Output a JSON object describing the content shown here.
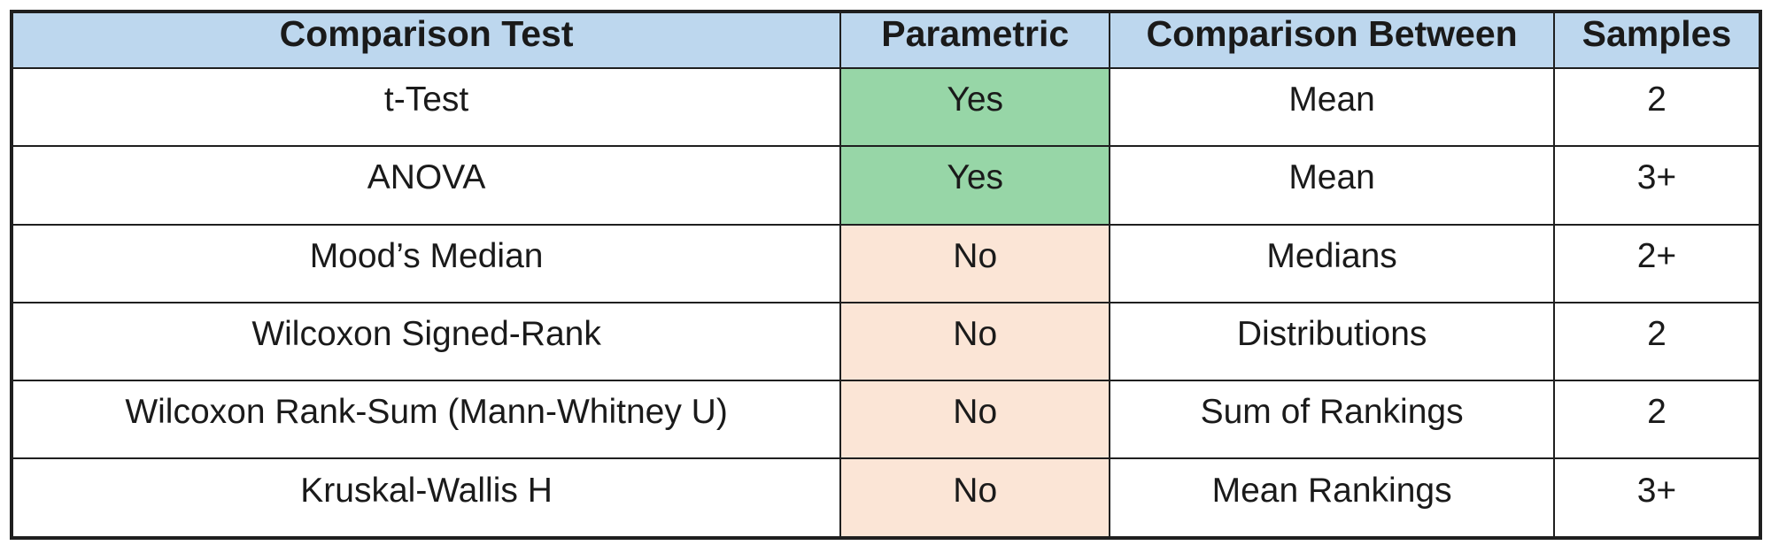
{
  "table": {
    "headers": [
      {
        "label": "Comparison Test"
      },
      {
        "label": "Parametric"
      },
      {
        "label": "Comparison Between"
      },
      {
        "label": "Samples"
      }
    ],
    "rows": [
      {
        "test": "t-Test",
        "parametric": "Yes",
        "comparison": "Mean",
        "samples": "2"
      },
      {
        "test": "ANOVA",
        "parametric": "Yes",
        "comparison": "Mean",
        "samples": "3+"
      },
      {
        "test": "Mood’s Median",
        "parametric": "No",
        "comparison": "Medians",
        "samples": "2+"
      },
      {
        "test": "Wilcoxon Signed-Rank",
        "parametric": "No",
        "comparison": "Distributions",
        "samples": "2"
      },
      {
        "test": "Wilcoxon Rank-Sum (Mann-Whitney U)",
        "parametric": "No",
        "comparison": "Sum of Rankings",
        "samples": "2"
      },
      {
        "test": "Kruskal-Wallis H",
        "parametric": "No",
        "comparison": "Mean Rankings",
        "samples": "3+"
      }
    ]
  },
  "colors": {
    "header_bg": "#BDD7EE",
    "border": "#1F1F1F",
    "text": "#1A1A1A",
    "page_bg": "#FFFFFF",
    "parametric_bg_map": {
      "Yes": "#97D6A7",
      "No": "#FBE5D6"
    }
  }
}
